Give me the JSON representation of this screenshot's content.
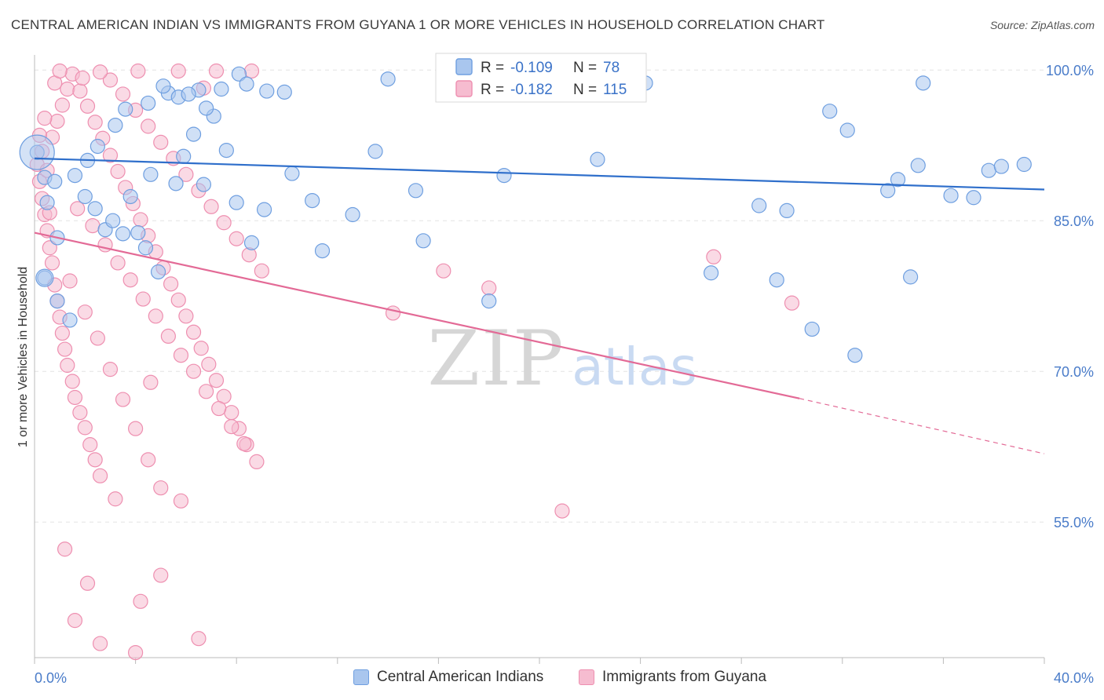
{
  "title": "CENTRAL AMERICAN INDIAN VS IMMIGRANTS FROM GUYANA 1 OR MORE VEHICLES IN HOUSEHOLD CORRELATION CHART",
  "source": "Source: ZipAtlas.com",
  "watermark": {
    "zip": "ZIP",
    "atlas": "atlas"
  },
  "legend_box": {
    "rows": [
      {
        "r_label": "R = ",
        "r_value": "-0.109",
        "n_label": "N = ",
        "n_value": "78"
      },
      {
        "r_label": "R = ",
        "r_value": "-0.182",
        "n_label": "N = ",
        "n_value": "115"
      }
    ]
  },
  "colors": {
    "blue_fill": "#a9c6ee",
    "blue_stroke": "#6f9fe0",
    "blue_line": "#2f6fcb",
    "pink_fill": "#f6bcd0",
    "pink_stroke": "#ee8fb0",
    "pink_line": "#e36a96",
    "tick": "#4a7cc9",
    "grid": "#e3e3e3"
  },
  "chart_data": {
    "type": "scatter",
    "title": "CENTRAL AMERICAN INDIAN VS IMMIGRANTS FROM GUYANA 1 OR MORE VEHICLES IN HOUSEHOLD CORRELATION CHART",
    "xlabel": "",
    "ylabel": "1 or more Vehicles in Household",
    "xlim": [
      0,
      40
    ],
    "ylim": [
      41.5,
      101.5
    ],
    "x_tick_labels": [
      "0.0%",
      "40.0%"
    ],
    "y_ticks": [
      100,
      85,
      70,
      55
    ],
    "y_tick_labels": [
      "100.0%",
      "85.0%",
      "70.0%",
      "55.0%"
    ],
    "grid": true,
    "legend_placement": "bottom-center",
    "series": [
      {
        "name": "Central American Indians",
        "r": -0.109,
        "n": 78,
        "trend": {
          "x": [
            0,
            40
          ],
          "y": [
            91.2,
            88.1
          ]
        },
        "points": [
          [
            0.1,
            91.8
          ],
          [
            0.4,
            89.3
          ],
          [
            0.5,
            86.8
          ],
          [
            0.8,
            88.9
          ],
          [
            0.9,
            83.3
          ],
          [
            0.4,
            79.3
          ],
          [
            0.9,
            77.0
          ],
          [
            1.4,
            75.1
          ],
          [
            1.6,
            89.5
          ],
          [
            2.0,
            87.4
          ],
          [
            2.1,
            91.0
          ],
          [
            2.4,
            86.2
          ],
          [
            2.8,
            84.1
          ],
          [
            3.1,
            85.0
          ],
          [
            3.6,
            96.1
          ],
          [
            3.8,
            87.4
          ],
          [
            4.1,
            83.8
          ],
          [
            4.4,
            82.3
          ],
          [
            4.6,
            89.6
          ],
          [
            4.9,
            79.9
          ],
          [
            5.3,
            97.7
          ],
          [
            5.6,
            88.7
          ],
          [
            5.9,
            91.4
          ],
          [
            6.3,
            93.6
          ],
          [
            6.7,
            88.6
          ],
          [
            7.1,
            95.4
          ],
          [
            7.6,
            92.0
          ],
          [
            8.0,
            86.8
          ],
          [
            8.6,
            82.8
          ],
          [
            9.1,
            86.1
          ],
          [
            3.5,
            83.7
          ],
          [
            6.5,
            98.0
          ],
          [
            2.5,
            92.4
          ],
          [
            3.2,
            94.5
          ],
          [
            4.5,
            96.7
          ],
          [
            5.1,
            98.4
          ],
          [
            5.7,
            97.3
          ],
          [
            6.1,
            97.6
          ],
          [
            6.8,
            96.2
          ],
          [
            7.4,
            98.1
          ],
          [
            8.1,
            99.6
          ],
          [
            8.4,
            98.6
          ],
          [
            9.2,
            97.9
          ],
          [
            9.9,
            97.8
          ],
          [
            10.2,
            89.7
          ],
          [
            11.0,
            87.0
          ],
          [
            11.4,
            82.0
          ],
          [
            12.6,
            85.6
          ],
          [
            13.5,
            91.9
          ],
          [
            14.0,
            99.1
          ],
          [
            15.1,
            88.0
          ],
          [
            16.5,
            98.7
          ],
          [
            17.0,
            99.1
          ],
          [
            18.6,
            89.5
          ],
          [
            19.4,
            99.1
          ],
          [
            22.3,
            91.1
          ],
          [
            23.0,
            99.4
          ],
          [
            29.4,
            79.1
          ],
          [
            29.8,
            86.0
          ],
          [
            30.8,
            74.2
          ],
          [
            31.5,
            95.9
          ],
          [
            32.2,
            94.0
          ],
          [
            33.8,
            88.0
          ],
          [
            34.2,
            89.1
          ],
          [
            35.0,
            90.5
          ],
          [
            35.2,
            98.7
          ],
          [
            36.3,
            87.5
          ],
          [
            37.2,
            87.3
          ],
          [
            37.8,
            90.0
          ],
          [
            38.3,
            90.4
          ],
          [
            15.4,
            83.0
          ],
          [
            18.0,
            77.0
          ],
          [
            24.2,
            98.7
          ],
          [
            26.8,
            79.8
          ],
          [
            28.7,
            86.5
          ],
          [
            32.5,
            71.6
          ],
          [
            34.7,
            79.4
          ],
          [
            39.2,
            90.6
          ]
        ],
        "big_points": [
          [
            0.1,
            91.8
          ],
          [
            0.4,
            79.3
          ]
        ]
      },
      {
        "name": "Immigrants from Guyana",
        "r": -0.182,
        "n": 115,
        "trend": {
          "x": [
            0,
            30.3
          ],
          "y": [
            83.8,
            67.3
          ]
        },
        "trend_extension": {
          "x": [
            30.3,
            40
          ],
          "y": [
            67.3,
            61.8
          ]
        },
        "points": [
          [
            0.1,
            90.6
          ],
          [
            0.2,
            88.9
          ],
          [
            0.3,
            87.2
          ],
          [
            0.4,
            85.6
          ],
          [
            0.5,
            84.0
          ],
          [
            0.6,
            82.3
          ],
          [
            0.7,
            80.8
          ],
          [
            0.8,
            78.6
          ],
          [
            0.9,
            77.0
          ],
          [
            1.0,
            75.4
          ],
          [
            1.1,
            73.8
          ],
          [
            1.2,
            72.2
          ],
          [
            1.3,
            70.6
          ],
          [
            1.5,
            69.0
          ],
          [
            1.6,
            67.4
          ],
          [
            1.8,
            65.9
          ],
          [
            2.0,
            64.4
          ],
          [
            2.2,
            62.7
          ],
          [
            2.4,
            61.2
          ],
          [
            2.6,
            59.6
          ],
          [
            0.3,
            91.9
          ],
          [
            0.5,
            90.0
          ],
          [
            0.7,
            93.3
          ],
          [
            0.9,
            94.9
          ],
          [
            1.1,
            96.5
          ],
          [
            1.3,
            98.1
          ],
          [
            1.5,
            99.6
          ],
          [
            1.8,
            97.9
          ],
          [
            2.1,
            96.4
          ],
          [
            2.4,
            94.8
          ],
          [
            2.7,
            93.2
          ],
          [
            3.0,
            91.5
          ],
          [
            3.3,
            89.9
          ],
          [
            3.6,
            88.3
          ],
          [
            3.9,
            86.7
          ],
          [
            4.2,
            85.1
          ],
          [
            4.5,
            83.5
          ],
          [
            4.8,
            81.9
          ],
          [
            5.1,
            80.3
          ],
          [
            5.4,
            78.7
          ],
          [
            5.7,
            77.1
          ],
          [
            6.0,
            75.5
          ],
          [
            6.3,
            73.9
          ],
          [
            6.6,
            72.3
          ],
          [
            6.9,
            70.7
          ],
          [
            7.2,
            69.1
          ],
          [
            7.5,
            67.5
          ],
          [
            7.8,
            65.9
          ],
          [
            8.1,
            64.3
          ],
          [
            8.4,
            62.7
          ],
          [
            3.0,
            99.0
          ],
          [
            3.5,
            97.6
          ],
          [
            4.0,
            96.0
          ],
          [
            4.5,
            94.4
          ],
          [
            5.0,
            92.8
          ],
          [
            5.5,
            91.2
          ],
          [
            6.0,
            89.6
          ],
          [
            6.5,
            88.0
          ],
          [
            7.0,
            86.4
          ],
          [
            7.5,
            84.8
          ],
          [
            8.0,
            83.2
          ],
          [
            8.5,
            81.6
          ],
          [
            9.0,
            80.0
          ],
          [
            1.2,
            52.3
          ],
          [
            1.6,
            45.2
          ],
          [
            2.1,
            48.9
          ],
          [
            2.6,
            42.9
          ],
          [
            4.2,
            47.1
          ],
          [
            5.0,
            49.7
          ],
          [
            5.8,
            57.1
          ],
          [
            6.5,
            43.4
          ],
          [
            4.0,
            42.0
          ],
          [
            0.6,
            85.8
          ],
          [
            1.7,
            86.2
          ],
          [
            2.3,
            84.5
          ],
          [
            2.8,
            82.6
          ],
          [
            3.3,
            80.8
          ],
          [
            3.8,
            79.1
          ],
          [
            4.3,
            77.2
          ],
          [
            4.8,
            75.5
          ],
          [
            5.3,
            73.5
          ],
          [
            5.8,
            71.6
          ],
          [
            6.3,
            70.0
          ],
          [
            6.8,
            68.0
          ],
          [
            7.3,
            66.3
          ],
          [
            7.8,
            64.5
          ],
          [
            8.3,
            62.8
          ],
          [
            8.8,
            61.0
          ],
          [
            1.4,
            79.0
          ],
          [
            2.0,
            75.9
          ],
          [
            2.5,
            73.3
          ],
          [
            3.0,
            70.2
          ],
          [
            3.5,
            67.2
          ],
          [
            4.0,
            64.3
          ],
          [
            4.5,
            61.2
          ],
          [
            5.0,
            58.4
          ],
          [
            14.2,
            75.8
          ],
          [
            16.2,
            80.0
          ],
          [
            18.0,
            78.3
          ],
          [
            20.9,
            56.1
          ],
          [
            26.9,
            81.4
          ],
          [
            30.0,
            76.8
          ],
          [
            3.2,
            57.3
          ],
          [
            4.6,
            68.9
          ],
          [
            0.2,
            93.5
          ],
          [
            0.4,
            95.2
          ],
          [
            0.8,
            98.7
          ],
          [
            1.0,
            99.9
          ],
          [
            1.9,
            99.2
          ],
          [
            2.6,
            99.8
          ],
          [
            4.1,
            99.9
          ],
          [
            5.7,
            99.9
          ],
          [
            7.2,
            99.9
          ],
          [
            8.6,
            99.9
          ],
          [
            6.7,
            98.2
          ]
        ]
      }
    ]
  },
  "bottom_legend": [
    {
      "label": "Central American Indians"
    },
    {
      "label": "Immigrants from Guyana"
    }
  ]
}
